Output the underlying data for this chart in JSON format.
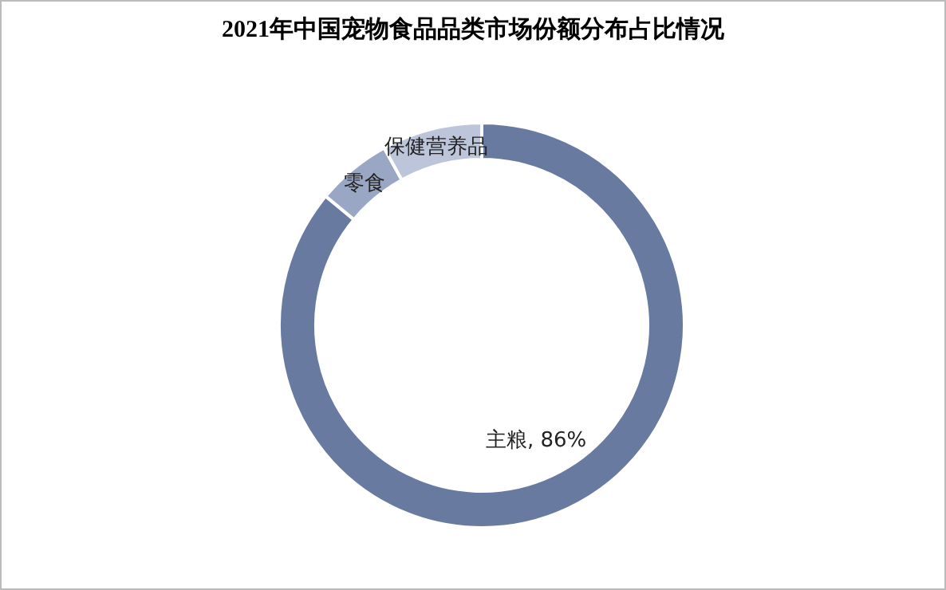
{
  "chart_data": {
    "type": "donut",
    "title": "2021年中国宠物食品品类市场份额分布占比情况",
    "categories": [
      "主粮",
      "零食",
      "保健营养品"
    ],
    "values": [
      86,
      6,
      8
    ],
    "colors": [
      "#687aa0",
      "#9aa7c4",
      "#bcc5d9"
    ],
    "value_labels": [
      "86%",
      null,
      null
    ],
    "legend": false
  }
}
